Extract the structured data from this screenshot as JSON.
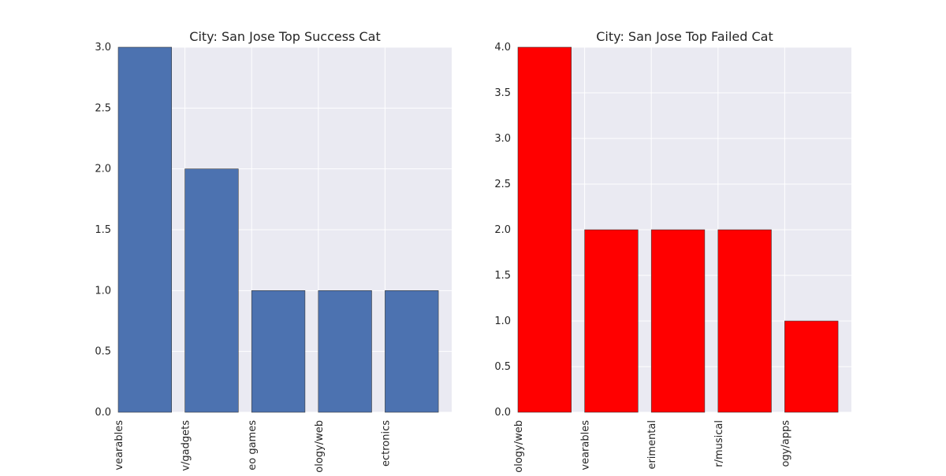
{
  "chart_data": [
    {
      "type": "bar",
      "title": "City: San Jose Top Success Cat",
      "categories": [
        "vearables",
        "v/gadgets",
        "eo games",
        "ology/web",
        "ectronics"
      ],
      "values": [
        3,
        2,
        1,
        1,
        1
      ],
      "xlabel": "",
      "ylabel": "",
      "ylim": [
        0,
        3
      ],
      "yticks": [
        0.0,
        0.5,
        1.0,
        1.5,
        2.0,
        2.5,
        3.0
      ],
      "bar_color": "#4c72b0",
      "grid": true
    },
    {
      "type": "bar",
      "title": "City: San Jose Top Failed Cat",
      "categories": [
        "ology/web",
        "vearables",
        "erimental",
        "r/musical",
        "ogy/apps"
      ],
      "values": [
        4,
        2,
        2,
        2,
        1
      ],
      "xlabel": "",
      "ylabel": "",
      "ylim": [
        0,
        4
      ],
      "yticks": [
        0.0,
        0.5,
        1.0,
        1.5,
        2.0,
        2.5,
        3.0,
        3.5,
        4.0
      ],
      "bar_color": "#ff0000",
      "grid": true
    }
  ],
  "colors": {
    "plot_background": "#eaeaf2",
    "grid": "#ffffff",
    "text": "#262626"
  }
}
